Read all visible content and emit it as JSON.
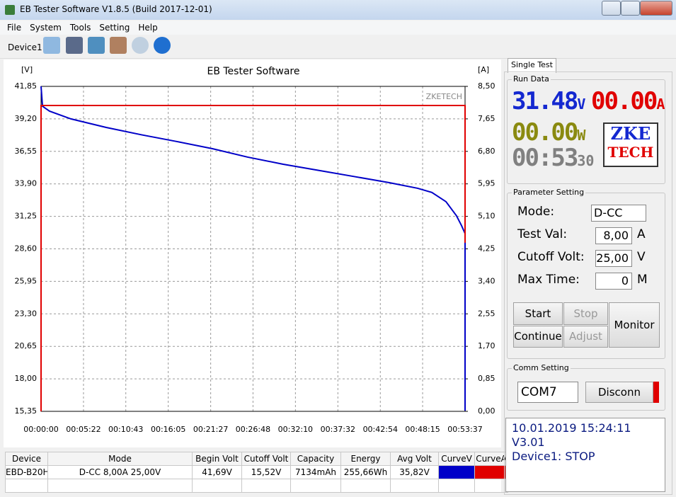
{
  "window": {
    "title": "EB Tester Software V1.8.5 (Build 2017-12-01)"
  },
  "menu": [
    "File",
    "System",
    "Tools",
    "Setting",
    "Help"
  ],
  "toolbar": {
    "device": "Device1"
  },
  "chart_data": {
    "type": "line",
    "title": "EB Tester Software",
    "y_label": "[V]",
    "y2_label": "[A]",
    "watermark": "ZKETECH",
    "xlim": [
      0,
      3217
    ],
    "ylim": [
      15.35,
      41.85
    ],
    "y2lim": [
      0,
      8.5
    ],
    "grid": true,
    "xticks": [
      {
        "value": 0,
        "label": "00:00:00"
      },
      {
        "value": 322,
        "label": "00:05:22"
      },
      {
        "value": 643,
        "label": "00:10:43"
      },
      {
        "value": 965,
        "label": "00:16:05"
      },
      {
        "value": 1287,
        "label": "00:21:27"
      },
      {
        "value": 1608,
        "label": "00:26:48"
      },
      {
        "value": 1930,
        "label": "00:32:10"
      },
      {
        "value": 2252,
        "label": "00:37:32"
      },
      {
        "value": 2574,
        "label": "00:42:54"
      },
      {
        "value": 2895,
        "label": "00:48:15"
      },
      {
        "value": 3217,
        "label": "00:53:37"
      }
    ],
    "yticks": [
      {
        "value": 41.85,
        "label": "41,85"
      },
      {
        "value": 39.2,
        "label": "39,20"
      },
      {
        "value": 36.55,
        "label": "36,55"
      },
      {
        "value": 33.9,
        "label": "33,90"
      },
      {
        "value": 31.25,
        "label": "31,25"
      },
      {
        "value": 28.6,
        "label": "28,60"
      },
      {
        "value": 25.95,
        "label": "25,95"
      },
      {
        "value": 23.3,
        "label": "23,30"
      },
      {
        "value": 20.65,
        "label": "20,65"
      },
      {
        "value": 18.0,
        "label": "18,00"
      },
      {
        "value": 15.35,
        "label": "15,35"
      }
    ],
    "y2ticks": [
      {
        "value": 8.5,
        "label": "8,50"
      },
      {
        "value": 7.65,
        "label": "7,65"
      },
      {
        "value": 6.8,
        "label": "6,80"
      },
      {
        "value": 5.95,
        "label": "5,95"
      },
      {
        "value": 5.1,
        "label": "5,10"
      },
      {
        "value": 4.25,
        "label": "4,25"
      },
      {
        "value": 3.4,
        "label": "3,40"
      },
      {
        "value": 2.55,
        "label": "2,55"
      },
      {
        "value": 1.7,
        "label": "1,70"
      },
      {
        "value": 0.85,
        "label": "0,85"
      },
      {
        "value": 0,
        "label": "0,00"
      }
    ],
    "series": [
      {
        "color": "#0000c8",
        "x": [
          0,
          11,
          64,
          226,
          494,
          763,
          1031,
          1300,
          1568,
          1837,
          2105,
          2374,
          2642,
          2857,
          2965,
          3072,
          3152,
          3190,
          3217,
          3217
        ],
        "values": [
          41.85,
          40.23,
          39.83,
          39.2,
          38.5,
          37.9,
          37.35,
          36.77,
          36.08,
          35.5,
          35.0,
          34.5,
          34.0,
          33.54,
          33.2,
          32.45,
          31.3,
          30.5,
          29.85,
          15.4
        ]
      },
      {
        "color": "#e00000",
        "axis": "y2",
        "x": [
          0,
          0,
          3217,
          3217
        ],
        "values": [
          0,
          8.0,
          8.0,
          4.41
        ]
      }
    ]
  },
  "panel": {
    "tab": "Single Test",
    "run_data": {
      "title": "Run Data",
      "voltage": "31.48",
      "voltage_unit": "V",
      "current": "00.00",
      "current_unit": "A",
      "power": "00.00",
      "power_unit": "W",
      "time": "00:53",
      "seconds": "30",
      "logo_top": "ZKE",
      "logo_bottom": "TECH"
    },
    "parameter": {
      "title": "Parameter Setting",
      "rows": [
        {
          "label": "Mode:",
          "value": "D-CC"
        },
        {
          "label": "Test Val:",
          "value": "8,00",
          "unit": "A"
        },
        {
          "label": "Cutoff Volt:",
          "value": "25,00",
          "unit": "V"
        },
        {
          "label": "Max Time:",
          "value": "0",
          "unit": "M"
        }
      ],
      "buttons": [
        "Start",
        "Stop",
        "Continue",
        "Adjust",
        "Monitor"
      ]
    },
    "comm": {
      "title": "Comm Setting",
      "port": "COM7",
      "button": "Disconn"
    },
    "status": [
      "10.01.2019 15:24:11  V3.01",
      "Device1: STOP"
    ]
  },
  "table": {
    "header": [
      "Device",
      "Mode",
      "Begin Volt",
      "Cutoff Volt",
      "Capacity",
      "Energy",
      "Avg Volt",
      "CurveV",
      "CurveA"
    ],
    "rows": [
      [
        "EBD-B20H",
        "D-CC  8,00A  25,00V",
        "41,69V",
        "15,52V",
        "7134mAh",
        "255,66Wh",
        "35,82V"
      ]
    ]
  }
}
